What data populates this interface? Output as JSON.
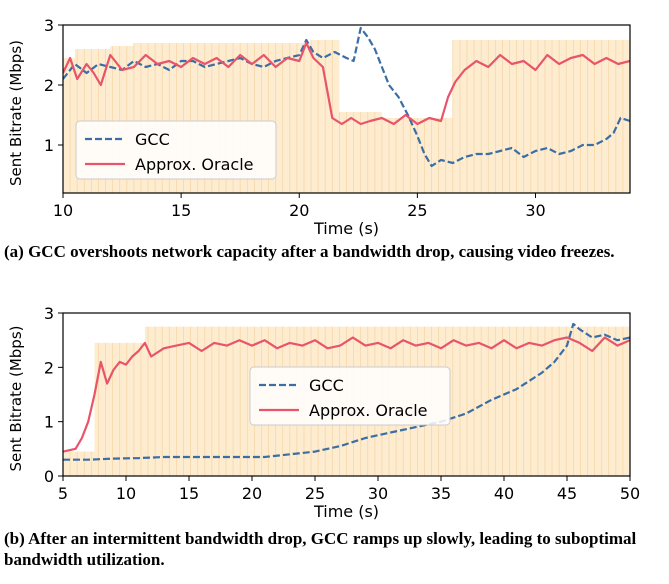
{
  "captions": {
    "a": "(a) GCC overshoots network capacity after a bandwidth drop, causing video freezes.",
    "b": "(b) After an intermittent bandwidth drop, GCC ramps up slowly, leading to suboptimal bandwidth utilization."
  },
  "colors": {
    "gcc": "#3b6ea5",
    "oracle": "#e8546a",
    "capacity_fill": "#fdeccf",
    "capacity_stripe": "#f6d7a8"
  },
  "chart_data": [
    {
      "type": "line",
      "id": "a",
      "xlabel": "Time (s)",
      "ylabel": "Sent Bitrate (Mbps)",
      "xlim": [
        10,
        34
      ],
      "ylim": [
        0.2,
        3.0
      ],
      "xticks": [
        10,
        15,
        20,
        25,
        30
      ],
      "yticks": [
        1,
        2,
        3
      ],
      "legend": {
        "position": "lower-left"
      },
      "capacity": {
        "x": [
          10,
          10.5,
          11.3,
          12,
          13,
          20.5,
          21.7,
          23.5,
          26.5,
          34
        ],
        "y": [
          2.45,
          2.6,
          2.6,
          2.65,
          2.7,
          2.75,
          1.55,
          1.45,
          2.75,
          2.75
        ]
      },
      "series": [
        {
          "name": "GCC",
          "style": "dashed",
          "color": "#3b6ea5",
          "x": [
            10,
            10.5,
            11,
            11.5,
            12,
            12.5,
            13,
            13.5,
            14,
            14.5,
            15,
            15.5,
            16,
            16.5,
            17,
            17.5,
            18,
            18.5,
            19,
            19.5,
            20,
            20.3,
            20.6,
            21,
            21.5,
            22,
            22.3,
            22.6,
            22.9,
            23.2,
            23.5,
            23.8,
            24.2,
            24.6,
            25,
            25.3,
            25.6,
            26,
            26.5,
            27,
            27.5,
            28,
            28.5,
            29,
            29.5,
            30,
            30.5,
            31,
            31.5,
            32,
            32.5,
            33,
            33.3,
            33.6,
            34
          ],
          "y": [
            2.1,
            2.35,
            2.2,
            2.35,
            2.3,
            2.25,
            2.4,
            2.3,
            2.35,
            2.25,
            2.4,
            2.4,
            2.3,
            2.35,
            2.4,
            2.45,
            2.35,
            2.3,
            2.4,
            2.45,
            2.5,
            2.75,
            2.55,
            2.45,
            2.55,
            2.45,
            2.4,
            2.95,
            2.8,
            2.6,
            2.3,
            2.0,
            1.8,
            1.5,
            1.15,
            0.85,
            0.65,
            0.75,
            0.7,
            0.8,
            0.85,
            0.85,
            0.9,
            0.95,
            0.8,
            0.9,
            0.95,
            0.85,
            0.9,
            1.0,
            1.0,
            1.1,
            1.2,
            1.45,
            1.4
          ]
        },
        {
          "name": "Approx. Oracle",
          "style": "solid",
          "color": "#e8546a",
          "x": [
            10,
            10.3,
            10.6,
            11,
            11.3,
            11.6,
            12,
            12.5,
            13,
            13.5,
            14,
            14.5,
            15,
            15.5,
            16,
            16.5,
            17,
            17.5,
            18,
            18.5,
            19,
            19.5,
            20,
            20.3,
            20.6,
            21,
            21.4,
            21.8,
            22.2,
            22.6,
            23,
            23.5,
            24,
            24.5,
            25,
            25.5,
            26,
            26.3,
            26.6,
            27,
            27.5,
            28,
            28.5,
            29,
            29.5,
            30,
            30.5,
            31,
            31.5,
            32,
            32.5,
            33,
            33.5,
            34
          ],
          "y": [
            2.2,
            2.45,
            2.1,
            2.35,
            2.2,
            2.0,
            2.5,
            2.25,
            2.3,
            2.5,
            2.35,
            2.4,
            2.3,
            2.45,
            2.35,
            2.45,
            2.3,
            2.5,
            2.35,
            2.5,
            2.3,
            2.45,
            2.4,
            2.7,
            2.45,
            2.3,
            1.45,
            1.35,
            1.45,
            1.35,
            1.4,
            1.45,
            1.35,
            1.5,
            1.35,
            1.45,
            1.4,
            1.8,
            2.05,
            2.25,
            2.4,
            2.3,
            2.5,
            2.35,
            2.4,
            2.25,
            2.5,
            2.35,
            2.45,
            2.5,
            2.35,
            2.45,
            2.35,
            2.4
          ]
        }
      ]
    },
    {
      "type": "line",
      "id": "b",
      "xlabel": "Time (s)",
      "ylabel": "Sent Bitrate (Mbps)",
      "xlim": [
        5,
        50
      ],
      "ylim": [
        0,
        3
      ],
      "xticks": [
        5,
        10,
        15,
        20,
        25,
        30,
        35,
        40,
        45,
        50
      ],
      "yticks": [
        0,
        1,
        2,
        3
      ],
      "legend": {
        "position": "center"
      },
      "capacity": {
        "x": [
          5,
          6.5,
          7.5,
          11.5,
          50
        ],
        "y": [
          0.45,
          0.45,
          2.45,
          2.75,
          2.75
        ]
      },
      "series": [
        {
          "name": "GCC",
          "style": "dashed",
          "color": "#3b6ea5",
          "x": [
            5,
            7,
            9,
            11,
            13,
            15,
            17,
            19,
            21,
            23,
            25,
            27,
            29,
            31,
            33,
            35,
            37,
            39,
            41,
            43,
            44,
            45,
            45.5,
            46,
            47,
            48,
            49,
            50
          ],
          "y": [
            0.3,
            0.3,
            0.32,
            0.33,
            0.35,
            0.35,
            0.35,
            0.35,
            0.35,
            0.4,
            0.45,
            0.55,
            0.7,
            0.8,
            0.9,
            1.0,
            1.15,
            1.4,
            1.6,
            1.9,
            2.1,
            2.4,
            2.8,
            2.7,
            2.55,
            2.6,
            2.5,
            2.55
          ]
        },
        {
          "name": "Approx. Oracle",
          "style": "solid",
          "color": "#e8546a",
          "x": [
            5,
            6,
            6.5,
            7,
            7.5,
            8,
            8.5,
            9,
            9.5,
            10,
            10.5,
            11,
            11.5,
            12,
            13,
            14,
            15,
            16,
            17,
            18,
            19,
            20,
            21,
            22,
            23,
            24,
            25,
            26,
            27,
            28,
            29,
            30,
            31,
            32,
            33,
            34,
            35,
            36,
            37,
            38,
            39,
            40,
            41,
            42,
            43,
            44,
            45,
            46,
            47,
            48,
            49,
            50
          ],
          "y": [
            0.45,
            0.5,
            0.7,
            1.0,
            1.5,
            2.1,
            1.7,
            1.95,
            2.1,
            2.05,
            2.2,
            2.3,
            2.45,
            2.2,
            2.35,
            2.4,
            2.45,
            2.3,
            2.45,
            2.4,
            2.5,
            2.4,
            2.5,
            2.35,
            2.45,
            2.4,
            2.5,
            2.35,
            2.4,
            2.55,
            2.4,
            2.45,
            2.35,
            2.5,
            2.4,
            2.45,
            2.35,
            2.5,
            2.4,
            2.45,
            2.35,
            2.5,
            2.35,
            2.45,
            2.4,
            2.5,
            2.55,
            2.45,
            2.3,
            2.55,
            2.4,
            2.5
          ]
        }
      ]
    }
  ]
}
